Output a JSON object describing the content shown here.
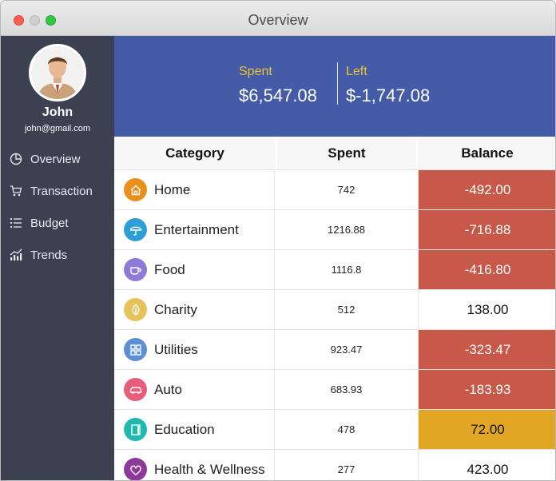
{
  "window": {
    "title": "Overview"
  },
  "user": {
    "name": "John",
    "email": "john@gmail.com"
  },
  "nav": {
    "items": [
      {
        "label": "Overview",
        "icon": "pie-chart-icon"
      },
      {
        "label": "Transaction",
        "icon": "cart-icon"
      },
      {
        "label": "Budget",
        "icon": "list-icon"
      },
      {
        "label": "Trends",
        "icon": "trend-chart-icon"
      }
    ]
  },
  "summary": {
    "spent_label": "Spent",
    "spent_value": "$6,547.08",
    "left_label": "Left",
    "left_value": "$-1,747.08"
  },
  "table": {
    "headers": {
      "category": "Category",
      "spent": "Spent",
      "balance": "Balance"
    },
    "rows": [
      {
        "category": "Home",
        "spent": "742",
        "balance": "-492.00",
        "status": "over",
        "icon": "house-icon",
        "icon_color": "#e8901a"
      },
      {
        "category": "Entertainment",
        "spent": "1216.88",
        "balance": "-716.88",
        "status": "over",
        "icon": "umbrella-icon",
        "icon_color": "#2e9fd6"
      },
      {
        "category": "Food",
        "spent": "1116.8",
        "balance": "-416.80",
        "status": "over",
        "icon": "cup-icon",
        "icon_color": "#8f7ad8"
      },
      {
        "category": "Charity",
        "spent": "512",
        "balance": "138.00",
        "status": "ok",
        "icon": "leaf-icon",
        "icon_color": "#e5c25a"
      },
      {
        "category": "Utilities",
        "spent": "923.47",
        "balance": "-323.47",
        "status": "over",
        "icon": "grid-icon",
        "icon_color": "#5c8fd6"
      },
      {
        "category": "Auto",
        "spent": "683.93",
        "balance": "-183.93",
        "status": "over",
        "icon": "car-icon",
        "icon_color": "#e85d7a"
      },
      {
        "category": "Education",
        "spent": "478",
        "balance": "72.00",
        "status": "warn",
        "icon": "book-icon",
        "icon_color": "#1fb9b0"
      },
      {
        "category": "Health & Wellness",
        "spent": "277",
        "balance": "423.00",
        "status": "ok",
        "icon": "heart-icon",
        "icon_color": "#8e3a9a"
      }
    ]
  },
  "colors": {
    "sidebar": "#3b4150",
    "summary_bg": "#445ba8",
    "label_accent": "#f2c230",
    "over_budget": "#c8584a",
    "near_limit": "#e1a624",
    "ok": "#ffffff"
  }
}
